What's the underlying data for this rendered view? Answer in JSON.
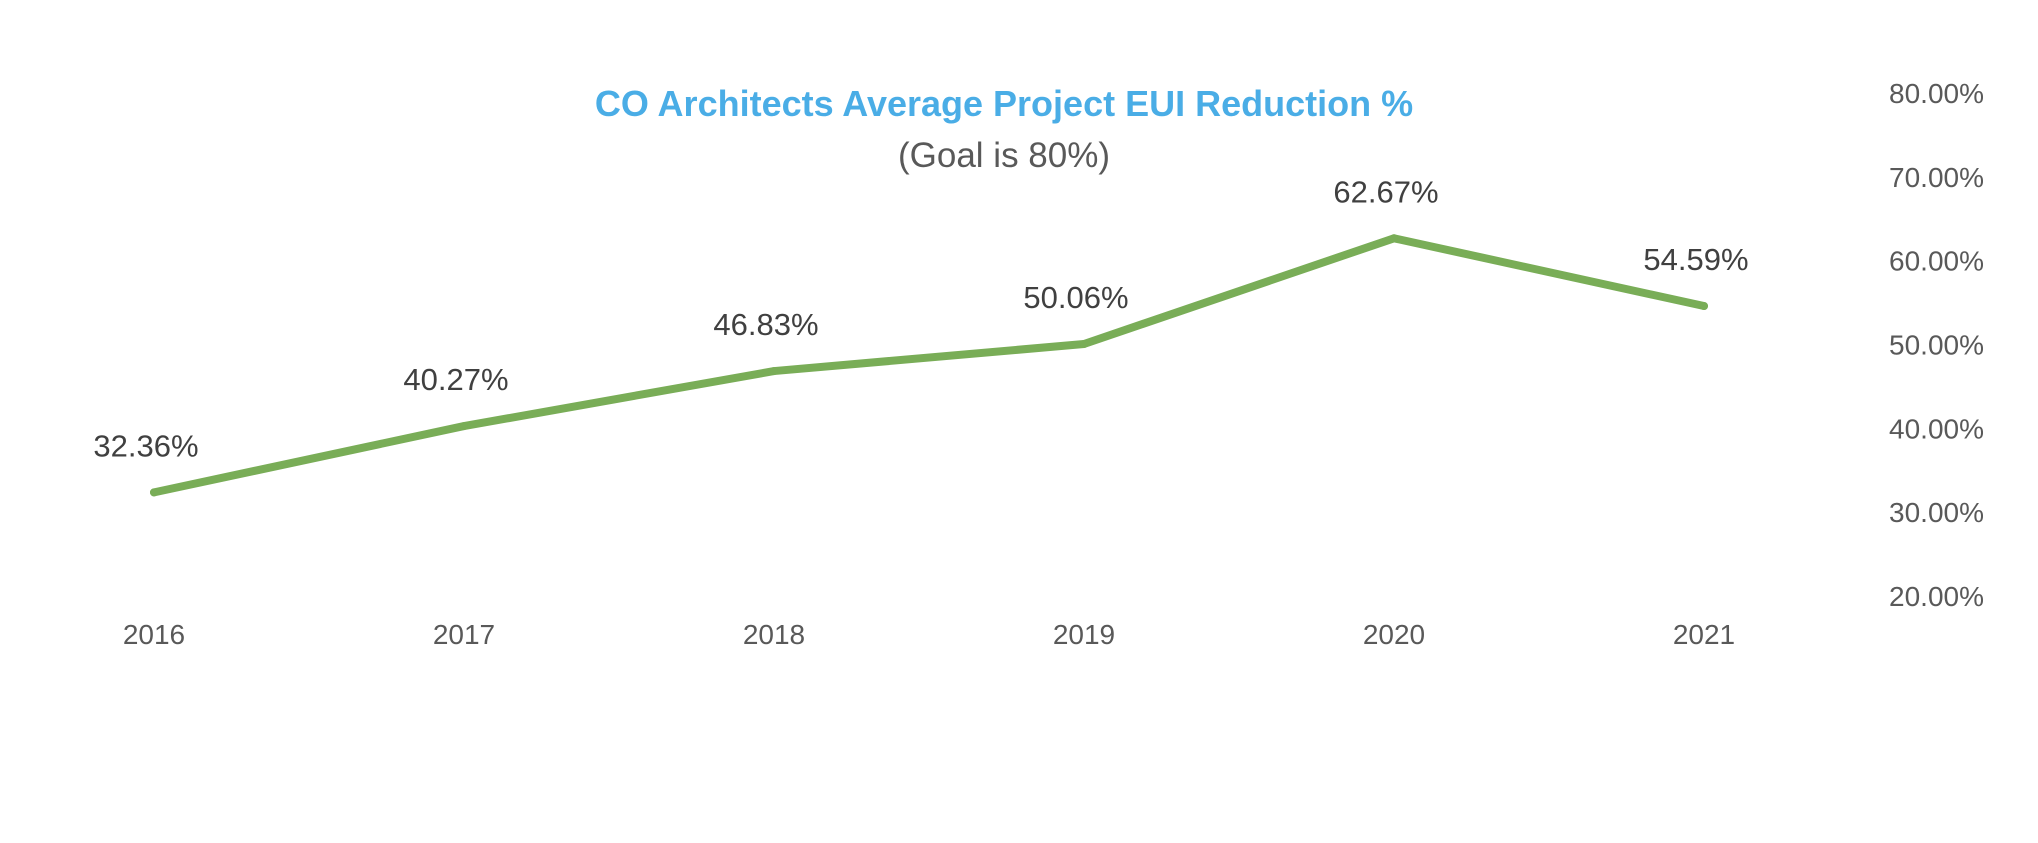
{
  "chart_data": {
    "type": "line",
    "title": "CO Architects Average Project EUI Reduction %",
    "subtitle": "(Goal is 80%)",
    "categories": [
      "2016",
      "2017",
      "2018",
      "2019",
      "2020",
      "2021"
    ],
    "series": [
      {
        "values": [
          32.36,
          40.27,
          46.83,
          50.06,
          62.67,
          54.59
        ],
        "data_labels": [
          "32.36%",
          "40.27%",
          "46.83%",
          "50.06%",
          "62.67%",
          "54.59%"
        ]
      }
    ],
    "yaxis": {
      "position": "right",
      "ticks": [
        20,
        30,
        40,
        50,
        60,
        70,
        80
      ],
      "tick_labels": [
        "20.00%",
        "30.00%",
        "40.00%",
        "50.00%",
        "60.00%",
        "70.00%",
        "80.00%"
      ]
    },
    "ylim": [
      20,
      80
    ],
    "grid": false,
    "legend": "none"
  },
  "colors": {
    "title": "#4AADE6",
    "subtitle": "#595959",
    "line": "#79AD57",
    "data_label": "#404040",
    "tick_label": "#595959"
  }
}
